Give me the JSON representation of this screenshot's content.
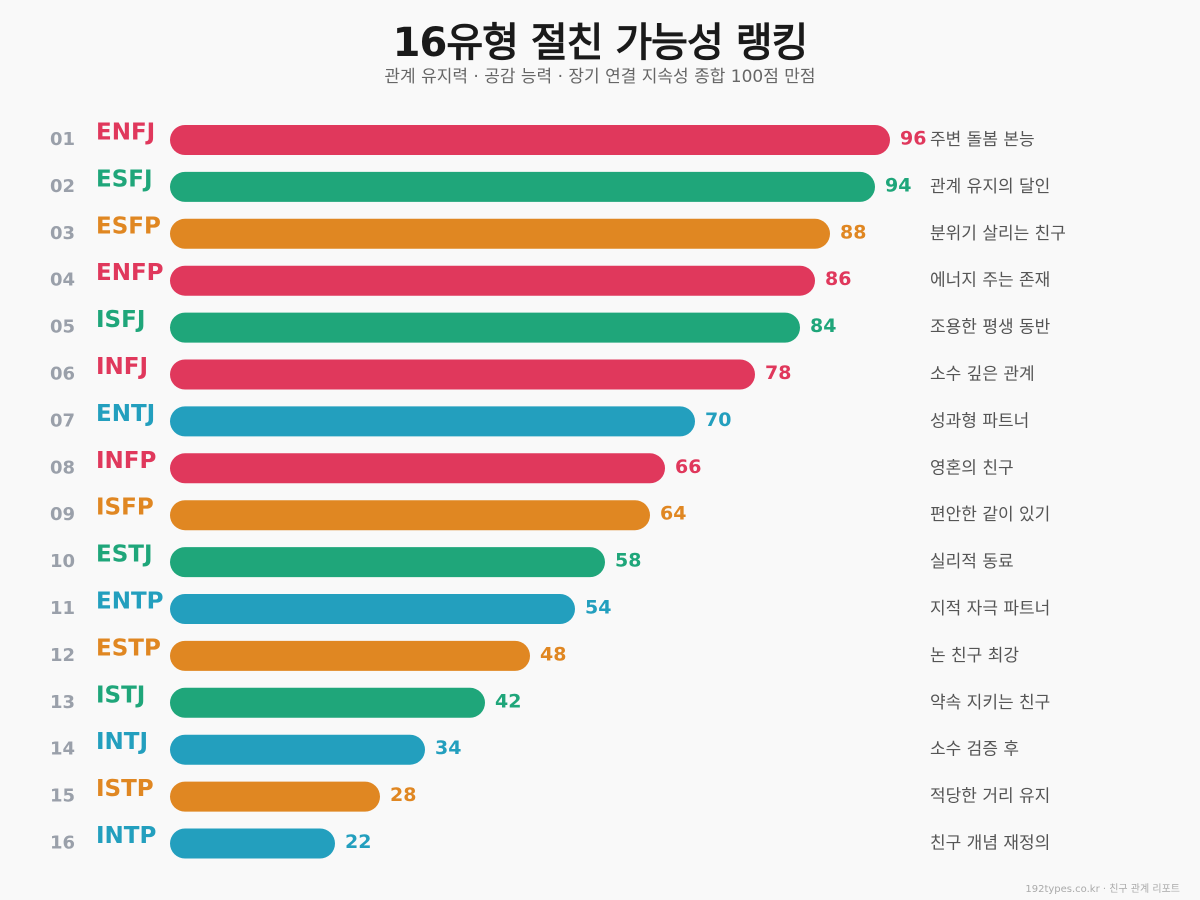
{
  "title": "16유형 절친 가능성 랭킹",
  "subtitle": "관계 유지력 · 공감 능력 · 장기 연결 지속성 종합 100점 만점",
  "footer": "192types.co.kr · 친구 관계 리포트",
  "colors": {
    "red": "#e0385c",
    "green": "#1fa67a",
    "orange": "#e08722",
    "blue": "#239fbe"
  },
  "chart_data": {
    "type": "bar",
    "orientation": "horizontal",
    "xlim": [
      0,
      100
    ],
    "grid": false,
    "rows": [
      {
        "rank": "01",
        "type": "ENFJ",
        "value": 96,
        "desc": "주변 돌봄 본능",
        "color": "red"
      },
      {
        "rank": "02",
        "type": "ESFJ",
        "value": 94,
        "desc": "관계 유지의 달인",
        "color": "green"
      },
      {
        "rank": "03",
        "type": "ESFP",
        "value": 88,
        "desc": "분위기 살리는 친구",
        "color": "orange"
      },
      {
        "rank": "04",
        "type": "ENFP",
        "value": 86,
        "desc": "에너지 주는 존재",
        "color": "red"
      },
      {
        "rank": "05",
        "type": "ISFJ",
        "value": 84,
        "desc": "조용한 평생 동반",
        "color": "green"
      },
      {
        "rank": "06",
        "type": "INFJ",
        "value": 78,
        "desc": "소수 깊은 관계",
        "color": "red"
      },
      {
        "rank": "07",
        "type": "ENTJ",
        "value": 70,
        "desc": "성과형 파트너",
        "color": "blue"
      },
      {
        "rank": "08",
        "type": "INFP",
        "value": 66,
        "desc": "영혼의 친구",
        "color": "red"
      },
      {
        "rank": "09",
        "type": "ISFP",
        "value": 64,
        "desc": "편안한 같이 있기",
        "color": "orange"
      },
      {
        "rank": "10",
        "type": "ESTJ",
        "value": 58,
        "desc": "실리적 동료",
        "color": "green"
      },
      {
        "rank": "11",
        "type": "ENTP",
        "value": 54,
        "desc": "지적 자극 파트너",
        "color": "blue"
      },
      {
        "rank": "12",
        "type": "ESTP",
        "value": 48,
        "desc": "논 친구 최강",
        "color": "orange"
      },
      {
        "rank": "13",
        "type": "ISTJ",
        "value": 42,
        "desc": "약속 지키는 친구",
        "color": "green"
      },
      {
        "rank": "14",
        "type": "INTJ",
        "value": 34,
        "desc": "소수 검증 후",
        "color": "blue"
      },
      {
        "rank": "15",
        "type": "ISTP",
        "value": 28,
        "desc": "적당한 거리 유지",
        "color": "orange"
      },
      {
        "rank": "16",
        "type": "INTP",
        "value": 22,
        "desc": "친구 개념 재정의",
        "color": "blue"
      }
    ]
  }
}
